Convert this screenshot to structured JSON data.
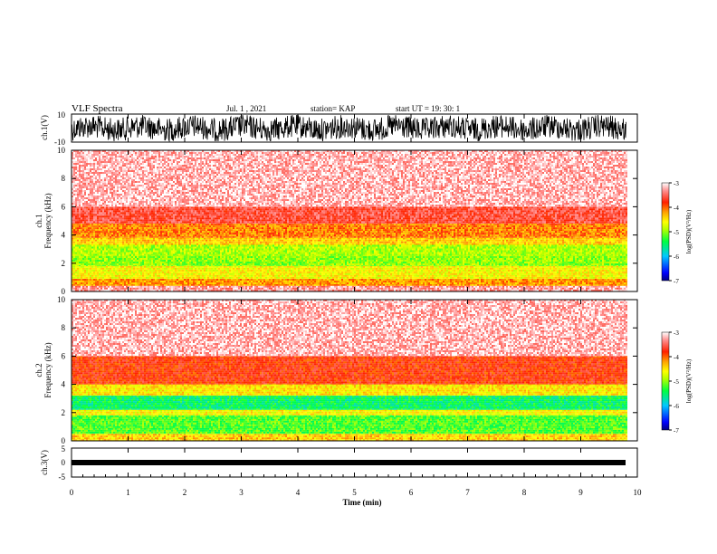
{
  "header": {
    "title": "VLF Spectra",
    "date": "Jul. 1 , 2021",
    "station": "station= KAP",
    "start": "start UT = 19: 30: 1"
  },
  "colorbar": {
    "label": "log(PSD)(V²/Hz)",
    "ticks": [
      "-3",
      "-4",
      "-5",
      "-6",
      "-7"
    ],
    "colors": [
      "#000080",
      "#0000ff",
      "#00c8ff",
      "#00ff40",
      "#b0ff00",
      "#ffff00",
      "#ffa000",
      "#ff2000",
      "#ff9090",
      "#ffffff"
    ]
  },
  "chart_data": [
    {
      "type": "line",
      "name": "ch.1(V)",
      "ylabel": "ch.1(V)",
      "ylim": [
        -10,
        10
      ],
      "yticks": [
        "10",
        "-10"
      ],
      "xlim": [
        0,
        10
      ]
    },
    {
      "type": "heatmap",
      "name": "ch.1 spectrogram",
      "ylabel_top": "ch.1",
      "ylabel": "Frequency (kHz)",
      "ylim": [
        0,
        10
      ],
      "yticks": [
        "0",
        "2",
        "4",
        "6",
        "8",
        "10"
      ],
      "xlim": [
        0,
        9.8
      ],
      "colorscale_range": [
        -7,
        -3
      ],
      "bands_khz": [
        {
          "from": 0.0,
          "to": 0.4,
          "level": -3.3
        },
        {
          "from": 0.4,
          "to": 0.9,
          "level": -4.2
        },
        {
          "from": 0.9,
          "to": 1.8,
          "level": -4.6
        },
        {
          "from": 1.8,
          "to": 2.5,
          "level": -5.0
        },
        {
          "from": 2.5,
          "to": 3.3,
          "level": -4.9
        },
        {
          "from": 3.3,
          "to": 3.8,
          "level": -4.4
        },
        {
          "from": 3.8,
          "to": 4.8,
          "level": -4.1
        },
        {
          "from": 4.8,
          "to": 6.0,
          "level": -3.6
        },
        {
          "from": 6.0,
          "to": 10.0,
          "level": -3.2
        }
      ]
    },
    {
      "type": "heatmap",
      "name": "ch.2 spectrogram",
      "ylabel_top": "ch.2",
      "ylabel": "Frequency (kHz)",
      "ylim": [
        0,
        10
      ],
      "yticks": [
        "0",
        "2",
        "4",
        "6",
        "8",
        "10"
      ],
      "xlim": [
        0,
        9.8
      ],
      "colorscale_range": [
        -7,
        -3
      ],
      "bands_khz": [
        {
          "from": 0.0,
          "to": 0.5,
          "level": -4.4
        },
        {
          "from": 0.5,
          "to": 1.8,
          "level": -5.2
        },
        {
          "from": 1.8,
          "to": 2.2,
          "level": -4.6
        },
        {
          "from": 2.2,
          "to": 3.2,
          "level": -5.5
        },
        {
          "from": 3.2,
          "to": 4.0,
          "level": -4.5
        },
        {
          "from": 4.0,
          "to": 6.0,
          "level": -3.8
        },
        {
          "from": 6.0,
          "to": 10.0,
          "level": -3.2
        }
      ]
    },
    {
      "type": "line",
      "name": "ch.3(V)",
      "ylabel": "ch.3(V)",
      "ylim": [
        -5,
        5
      ],
      "yticks": [
        "5",
        "0",
        "-5"
      ],
      "xlim": [
        0,
        10
      ]
    }
  ],
  "xaxis": {
    "label": "Time (min)",
    "ticks": [
      "0",
      "1",
      "2",
      "3",
      "4",
      "5",
      "6",
      "7",
      "8",
      "9",
      "10"
    ]
  }
}
